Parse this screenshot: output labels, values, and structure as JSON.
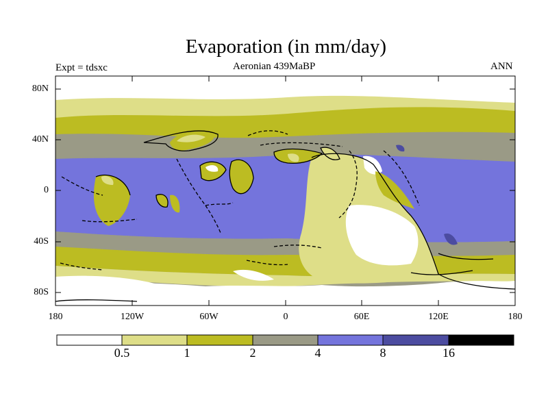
{
  "title": "Evaporation (in mm/day)",
  "expt_label": "Expt = tdsxc",
  "period_label": "Aeronian 439MaBP",
  "season_label": "ANN",
  "y_ticks": [
    "80N",
    "40N",
    "0",
    "40S",
    "80S"
  ],
  "x_ticks": [
    "180",
    "120W",
    "60W",
    "0",
    "60E",
    "120E",
    "180"
  ],
  "colorbar": {
    "labels": [
      "0.5",
      "1",
      "2",
      "4",
      "8",
      "16"
    ],
    "colors": [
      "#ffffff",
      "#dede88",
      "#bcbc22",
      "#9a9a86",
      "#7474dc",
      "#4c4ca0",
      "#000000"
    ]
  }
}
